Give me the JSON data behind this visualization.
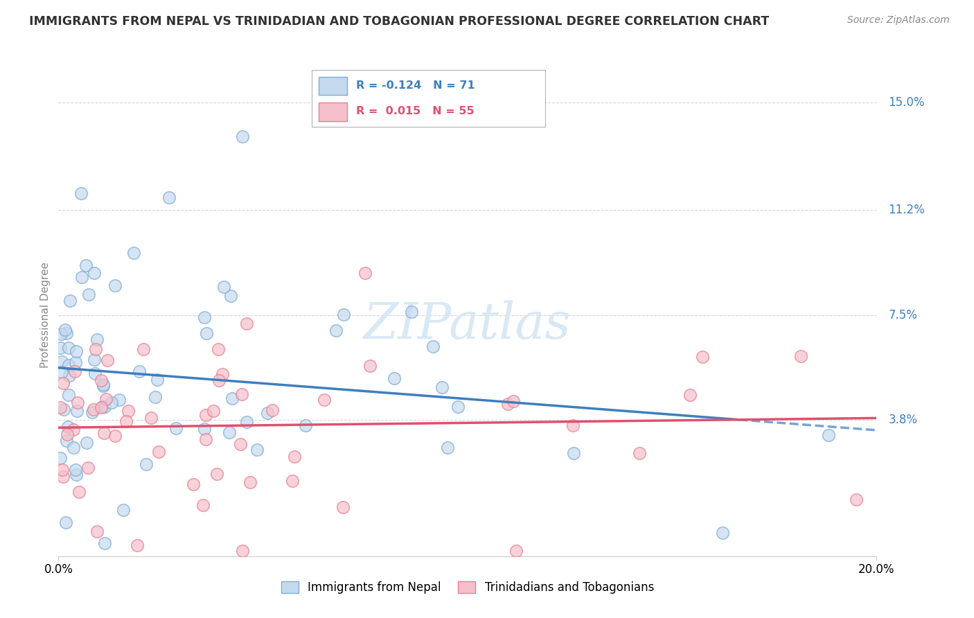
{
  "title": "IMMIGRANTS FROM NEPAL VS TRINIDADIAN AND TOBAGONIAN PROFESSIONAL DEGREE CORRELATION CHART",
  "source": "Source: ZipAtlas.com",
  "ylabel": "Professional Degree",
  "series1_label": "Immigrants from Nepal",
  "series2_label": "Trinidadians and Tobagonians",
  "series1_R": -0.124,
  "series1_N": 71,
  "series2_R": 0.015,
  "series2_N": 55,
  "xlim": [
    0.0,
    20.0
  ],
  "ylim": [
    -1.0,
    16.0
  ],
  "plot_ylim": [
    0.0,
    15.0
  ],
  "yticks": [
    3.8,
    7.5,
    11.2,
    15.0
  ],
  "ytick_labels": [
    "3.8%",
    "7.5%",
    "11.2%",
    "15.0%"
  ],
  "xtick_labels": [
    "0.0%",
    "20.0%"
  ],
  "series1_face_color": "#c5d9ee",
  "series1_edge_color": "#7eadd4",
  "series2_face_color": "#f5c0cb",
  "series2_edge_color": "#e8808f",
  "series1_line_color": "#3e7fbf",
  "series2_line_color": "#e05070",
  "legend_text_color1": "#3e7fbf",
  "legend_text_color2": "#e05070",
  "watermark_color": "#d8e8f5",
  "background_color": "#ffffff",
  "grid_color": "#cccccc",
  "title_color": "#333333",
  "source_color": "#888888"
}
